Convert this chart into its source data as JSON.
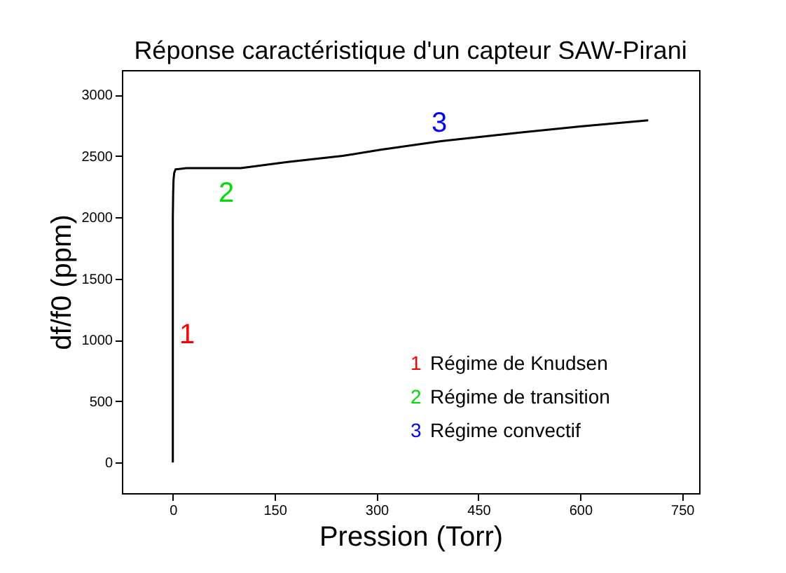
{
  "chart_data": {
    "type": "line",
    "title": "Réponse caractéristique d'un capteur SAW-Pirani",
    "xlabel": "Pression (Torr)",
    "ylabel": "df/f0 (ppm)",
    "x": [
      0,
      0,
      0,
      0.5,
      1,
      2,
      4,
      20,
      50,
      100,
      169,
      250,
      306,
      395,
      511,
      600,
      700
    ],
    "series": [
      {
        "color": "#000000",
        "values": [
          0,
          1000,
          2000,
          2200,
          2300,
          2360,
          2390,
          2400,
          2400,
          2400,
          2450,
          2500,
          2550,
          2620,
          2690,
          2740,
          2790
        ]
      }
    ],
    "xlim": [
      -75,
      775
    ],
    "xticks": [
      0,
      150,
      300,
      450,
      600,
      750
    ],
    "ylim": [
      -250,
      3200
    ],
    "yticks": [
      0,
      500,
      1000,
      1500,
      2000,
      2500,
      3000
    ],
    "grid": false,
    "marker": "none",
    "line_style": "solid",
    "annotations": [
      "1",
      "2",
      "3",
      "1 Régime de Knudsen",
      "2 Régime de transition",
      "3 Régime convectif"
    ]
  }
}
